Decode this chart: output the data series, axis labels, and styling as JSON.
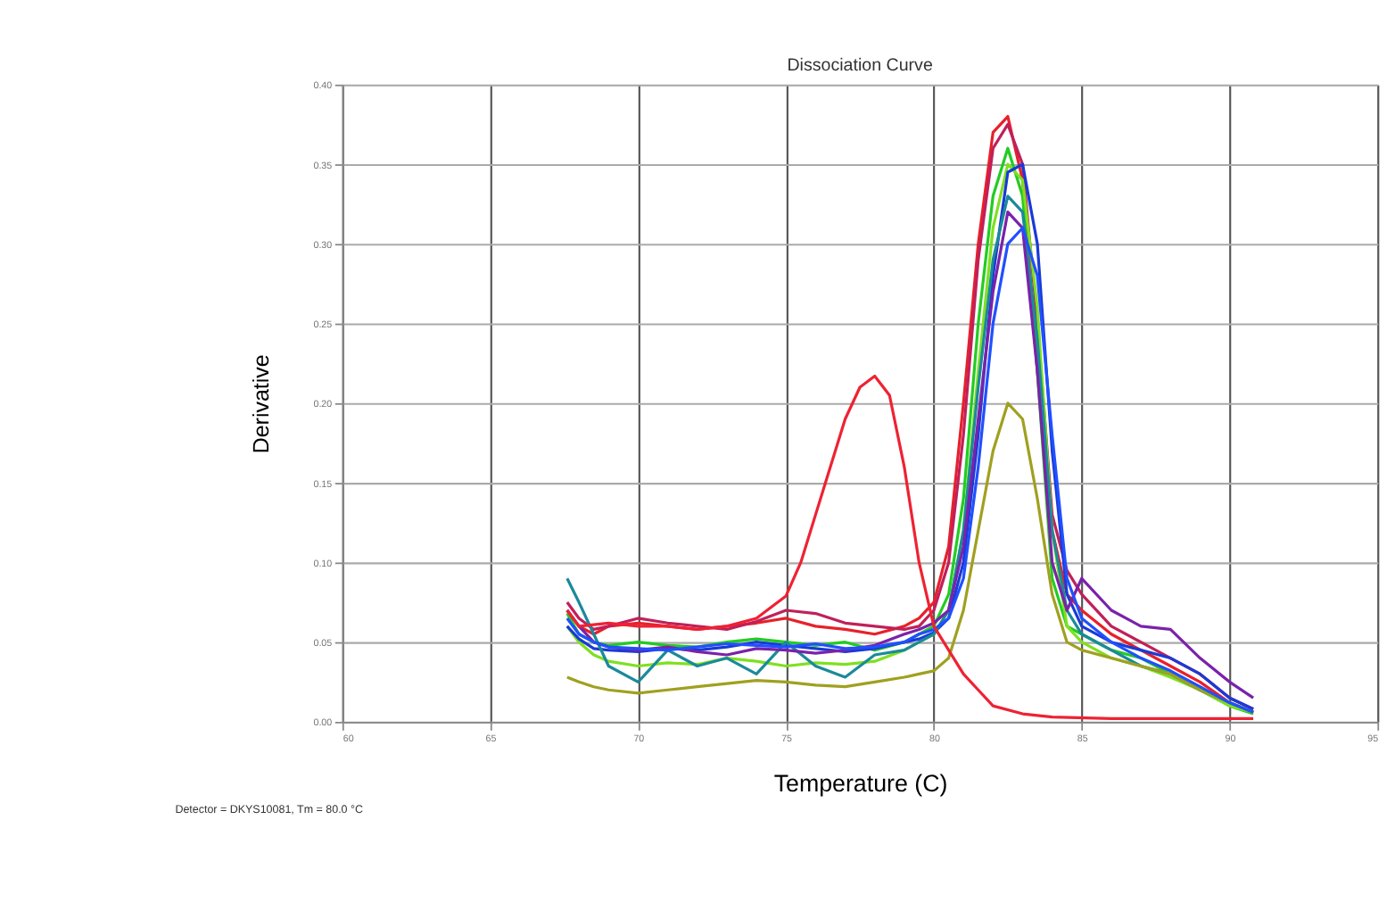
{
  "chart_data": {
    "type": "line",
    "title": "Dissociation Curve",
    "xlabel": "Temperature (C)",
    "ylabel": "Derivative",
    "annotations": [
      "Detector = DKYS10081, Tm = 80.0 °C"
    ],
    "x": [
      67.6,
      68,
      68.5,
      69,
      70,
      71,
      72,
      73,
      74,
      75,
      76,
      77,
      78,
      79,
      79.5,
      80,
      80.5,
      81,
      81.5,
      82,
      82.5,
      83,
      83.5,
      84,
      84.5,
      85,
      86,
      87,
      88,
      89,
      90,
      90.8
    ],
    "xlim": [
      60,
      95
    ],
    "xticks": [
      60,
      65,
      70,
      75,
      80,
      85,
      90,
      95
    ],
    "ylim": [
      0,
      0.4
    ],
    "yticks": [
      {
        "value": 0,
        "label": "0.00"
      },
      {
        "value": 0.05,
        "label": "0.05"
      },
      {
        "value": 0.1,
        "label": "0.10"
      },
      {
        "value": 0.15,
        "label": "0.15"
      },
      {
        "value": 0.2,
        "label": "0.20"
      },
      {
        "value": 0.25,
        "label": "0.25"
      },
      {
        "value": 0.3,
        "label": "0.30"
      },
      {
        "value": 0.35,
        "label": "0.35"
      },
      {
        "value": 0.4,
        "label": "0.40"
      }
    ],
    "grid": true,
    "legend": false,
    "marker": "none",
    "line_style": "solid",
    "series": [
      {
        "color": "#e8202a",
        "values": [
          0.07,
          0.06,
          0.055,
          0.06,
          0.062,
          0.06,
          0.058,
          0.06,
          0.062,
          0.065,
          0.06,
          0.058,
          0.055,
          0.06,
          0.065,
          0.075,
          0.11,
          0.2,
          0.3,
          0.37,
          0.38,
          0.34,
          0.22,
          0.12,
          0.08,
          0.07,
          0.055,
          0.045,
          0.035,
          0.025,
          0.012,
          0.006
        ]
      },
      {
        "color": "#c0205a",
        "values": [
          0.075,
          0.065,
          0.058,
          0.06,
          0.065,
          0.062,
          0.06,
          0.058,
          0.063,
          0.07,
          0.068,
          0.062,
          0.06,
          0.058,
          0.06,
          0.07,
          0.1,
          0.18,
          0.29,
          0.36,
          0.375,
          0.35,
          0.25,
          0.13,
          0.095,
          0.08,
          0.06,
          0.05,
          0.04,
          0.03,
          0.015,
          0.008
        ]
      },
      {
        "color": "#22cc22",
        "values": [
          0.068,
          0.055,
          0.05,
          0.048,
          0.05,
          0.048,
          0.047,
          0.05,
          0.052,
          0.05,
          0.048,
          0.05,
          0.045,
          0.05,
          0.055,
          0.06,
          0.08,
          0.14,
          0.25,
          0.33,
          0.36,
          0.33,
          0.22,
          0.09,
          0.06,
          0.055,
          0.045,
          0.04,
          0.03,
          0.02,
          0.01,
          0.005
        ]
      },
      {
        "color": "#7fe020",
        "values": [
          0.06,
          0.05,
          0.042,
          0.038,
          0.035,
          0.037,
          0.036,
          0.04,
          0.038,
          0.035,
          0.037,
          0.036,
          0.038,
          0.045,
          0.05,
          0.055,
          0.07,
          0.12,
          0.22,
          0.31,
          0.35,
          0.34,
          0.26,
          0.12,
          0.06,
          0.05,
          0.04,
          0.035,
          0.028,
          0.02,
          0.01,
          0.006
        ]
      },
      {
        "color": "#1a3ad6",
        "values": [
          0.06,
          0.052,
          0.046,
          0.045,
          0.044,
          0.046,
          0.045,
          0.047,
          0.05,
          0.048,
          0.046,
          0.044,
          0.046,
          0.05,
          0.052,
          0.056,
          0.065,
          0.1,
          0.18,
          0.28,
          0.345,
          0.35,
          0.3,
          0.17,
          0.08,
          0.06,
          0.05,
          0.045,
          0.04,
          0.03,
          0.015,
          0.008
        ]
      },
      {
        "color": "#1a8a9a",
        "values": [
          0.09,
          0.075,
          0.055,
          0.035,
          0.025,
          0.045,
          0.035,
          0.04,
          0.03,
          0.05,
          0.035,
          0.028,
          0.042,
          0.045,
          0.05,
          0.055,
          0.07,
          0.12,
          0.21,
          0.29,
          0.33,
          0.32,
          0.24,
          0.12,
          0.07,
          0.055,
          0.045,
          0.035,
          0.03,
          0.02,
          0.012,
          0.006
        ]
      },
      {
        "color": "#7a22aa",
        "values": [
          0.07,
          0.06,
          0.05,
          0.047,
          0.045,
          0.047,
          0.044,
          0.042,
          0.046,
          0.045,
          0.043,
          0.045,
          0.048,
          0.055,
          0.058,
          0.062,
          0.07,
          0.11,
          0.19,
          0.27,
          0.32,
          0.31,
          0.22,
          0.1,
          0.07,
          0.09,
          0.07,
          0.06,
          0.058,
          0.04,
          0.025,
          0.015
        ]
      },
      {
        "color": "#a0a020",
        "values": [
          0.028,
          0.025,
          0.022,
          0.02,
          0.018,
          0.02,
          0.022,
          0.024,
          0.026,
          0.025,
          0.023,
          0.022,
          0.025,
          0.028,
          0.03,
          0.032,
          0.04,
          0.07,
          0.12,
          0.17,
          0.2,
          0.19,
          0.14,
          0.08,
          0.05,
          0.045,
          0.04,
          0.035,
          0.03,
          0.02,
          0.012,
          0.006
        ]
      },
      {
        "color": "#2050ff",
        "values": [
          0.065,
          0.055,
          0.05,
          0.047,
          0.046,
          0.045,
          0.047,
          0.049,
          0.048,
          0.047,
          0.049,
          0.046,
          0.047,
          0.05,
          0.055,
          0.058,
          0.065,
          0.09,
          0.16,
          0.25,
          0.3,
          0.31,
          0.28,
          0.18,
          0.09,
          0.065,
          0.05,
          0.04,
          0.032,
          0.022,
          0.012,
          0.006
        ]
      },
      {
        "color": "#ee2233",
        "x": [
          67.6,
          68,
          69,
          70,
          71,
          72,
          73,
          74,
          75,
          75.5,
          76,
          76.5,
          77,
          77.5,
          78,
          78.5,
          79,
          79.5,
          80,
          80.5,
          81,
          81.5,
          82,
          83,
          84,
          86,
          88,
          90,
          90.8
        ],
        "values": [
          0.07,
          0.06,
          0.062,
          0.06,
          0.06,
          0.058,
          0.06,
          0.065,
          0.079,
          0.1,
          0.13,
          0.16,
          0.19,
          0.21,
          0.217,
          0.205,
          0.16,
          0.1,
          0.06,
          0.045,
          0.03,
          0.02,
          0.01,
          0.005,
          0.003,
          0.002,
          0.002,
          0.002,
          0.002
        ]
      }
    ]
  }
}
